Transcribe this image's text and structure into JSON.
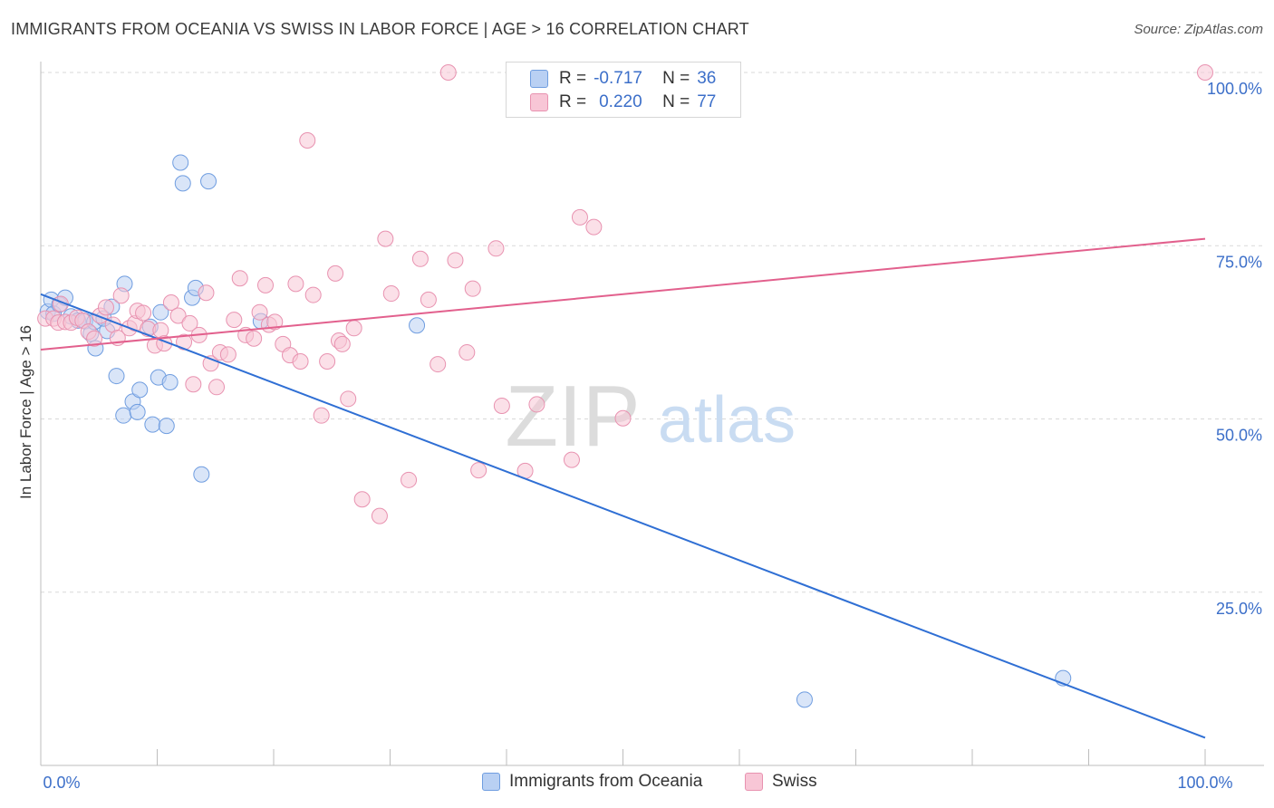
{
  "title": "IMMIGRANTS FROM OCEANIA VS SWISS IN LABOR FORCE | AGE > 16 CORRELATION CHART",
  "source": "Source: ZipAtlas.com",
  "watermark": {
    "zip": "ZIP",
    "atlas": "atlas"
  },
  "legend": {
    "r_label": "R =",
    "n_label": "N =",
    "items": [
      {
        "name": "Immigrants from Oceania",
        "r": "-0.717",
        "n": "36",
        "fill": "#b9d0f3",
        "stroke": "#6f9de0"
      },
      {
        "name": "Swiss",
        "r": "0.220",
        "n": "77",
        "fill": "#f8c6d6",
        "stroke": "#e892b0"
      }
    ]
  },
  "chart_data": {
    "type": "scatter",
    "title": "IMMIGRANTS FROM OCEANIA VS SWISS IN LABOR FORCE | AGE > 16 CORRELATION CHART",
    "xlabel": "",
    "ylabel": "In Labor Force | Age > 16",
    "xlim": [
      0,
      100
    ],
    "ylim": [
      0,
      100
    ],
    "x_tick_labels": [
      {
        "value": 0,
        "label": "0.0%"
      },
      {
        "value": 100,
        "label": "100.0%"
      }
    ],
    "y_tick_labels": [
      {
        "value": 25,
        "label": "25.0%"
      },
      {
        "value": 50,
        "label": "50.0%"
      },
      {
        "value": 75,
        "label": "75.0%"
      },
      {
        "value": 100,
        "label": "100.0%"
      }
    ],
    "grid": true,
    "series": [
      {
        "name": "Immigrants from Oceania",
        "color": "#6f9de0",
        "fill": "#b9d0f3",
        "trend_color": "#2f6fd4",
        "trend": {
          "x0": 0,
          "y0": 68.0,
          "x1": 100,
          "y1": 4.0
        },
        "points": [
          [
            0.6,
            65.5
          ],
          [
            0.9,
            67.2
          ],
          [
            1.1,
            65.2
          ],
          [
            1.6,
            66.5
          ],
          [
            2.1,
            67.5
          ],
          [
            2.6,
            64.8
          ],
          [
            3.2,
            64.2
          ],
          [
            3.8,
            64.1
          ],
          [
            4.3,
            62.3
          ],
          [
            4.6,
            64.0
          ],
          [
            4.7,
            60.2
          ],
          [
            5.7,
            62.7
          ],
          [
            5.4,
            64.5
          ],
          [
            6.1,
            66.2
          ],
          [
            6.5,
            56.2
          ],
          [
            7.1,
            50.5
          ],
          [
            7.2,
            69.5
          ],
          [
            7.9,
            52.5
          ],
          [
            8.3,
            51.0
          ],
          [
            8.5,
            54.2
          ],
          [
            9.4,
            63.3
          ],
          [
            9.6,
            49.2
          ],
          [
            10.1,
            56.0
          ],
          [
            10.3,
            65.4
          ],
          [
            10.8,
            49.0
          ],
          [
            11.1,
            55.3
          ],
          [
            12.0,
            87.0
          ],
          [
            12.2,
            84.0
          ],
          [
            13.0,
            67.5
          ],
          [
            13.3,
            68.9
          ],
          [
            13.8,
            42.0
          ],
          [
            14.4,
            84.3
          ],
          [
            18.9,
            64.1
          ],
          [
            32.3,
            63.5
          ],
          [
            65.6,
            9.5
          ],
          [
            87.8,
            12.6
          ]
        ]
      },
      {
        "name": "Swiss",
        "color": "#e892b0",
        "fill": "#f8c6d6",
        "trend_color": "#e2608d",
        "trend": {
          "x0": 0,
          "y0": 60.0,
          "x1": 100,
          "y1": 76.0
        },
        "points": [
          [
            0.4,
            64.5
          ],
          [
            1.1,
            64.5
          ],
          [
            1.5,
            63.9
          ],
          [
            1.7,
            66.6
          ],
          [
            2.1,
            64.0
          ],
          [
            2.6,
            63.9
          ],
          [
            3.1,
            64.6
          ],
          [
            3.6,
            64.2
          ],
          [
            4.1,
            62.6
          ],
          [
            4.6,
            61.6
          ],
          [
            5.1,
            64.9
          ],
          [
            5.6,
            66.1
          ],
          [
            6.2,
            63.6
          ],
          [
            6.6,
            61.7
          ],
          [
            6.9,
            67.8
          ],
          [
            7.6,
            63.1
          ],
          [
            8.1,
            63.8
          ],
          [
            8.3,
            65.6
          ],
          [
            8.8,
            65.3
          ],
          [
            9.2,
            63.0
          ],
          [
            9.8,
            60.6
          ],
          [
            10.3,
            62.8
          ],
          [
            10.6,
            60.9
          ],
          [
            11.2,
            66.8
          ],
          [
            11.8,
            64.9
          ],
          [
            12.3,
            61.1
          ],
          [
            12.8,
            63.8
          ],
          [
            13.1,
            55.0
          ],
          [
            13.6,
            62.1
          ],
          [
            14.2,
            68.2
          ],
          [
            14.6,
            58.0
          ],
          [
            15.1,
            54.6
          ],
          [
            15.4,
            59.6
          ],
          [
            16.1,
            59.3
          ],
          [
            16.6,
            64.3
          ],
          [
            17.1,
            70.3
          ],
          [
            17.6,
            62.1
          ],
          [
            18.3,
            61.6
          ],
          [
            18.8,
            65.4
          ],
          [
            19.3,
            69.3
          ],
          [
            19.6,
            63.6
          ],
          [
            20.1,
            64.0
          ],
          [
            20.8,
            60.8
          ],
          [
            21.4,
            59.2
          ],
          [
            21.9,
            69.5
          ],
          [
            22.3,
            58.3
          ],
          [
            22.9,
            90.2
          ],
          [
            23.4,
            67.9
          ],
          [
            24.1,
            50.5
          ],
          [
            24.6,
            58.3
          ],
          [
            25.3,
            71.0
          ],
          [
            25.6,
            61.3
          ],
          [
            25.9,
            60.8
          ],
          [
            26.4,
            52.9
          ],
          [
            26.9,
            63.1
          ],
          [
            27.6,
            38.4
          ],
          [
            29.1,
            36.0
          ],
          [
            29.6,
            76.0
          ],
          [
            30.1,
            68.1
          ],
          [
            31.6,
            41.2
          ],
          [
            32.6,
            73.1
          ],
          [
            33.3,
            67.2
          ],
          [
            34.1,
            57.9
          ],
          [
            35.0,
            100.0
          ],
          [
            35.6,
            72.9
          ],
          [
            36.6,
            59.6
          ],
          [
            37.1,
            68.8
          ],
          [
            37.6,
            42.6
          ],
          [
            39.1,
            74.6
          ],
          [
            39.6,
            51.9
          ],
          [
            41.6,
            42.5
          ],
          [
            42.6,
            52.1
          ],
          [
            45.6,
            44.1
          ],
          [
            46.3,
            79.1
          ],
          [
            47.5,
            77.7
          ],
          [
            50.0,
            50.1
          ],
          [
            100.0,
            100.0
          ]
        ]
      }
    ]
  }
}
